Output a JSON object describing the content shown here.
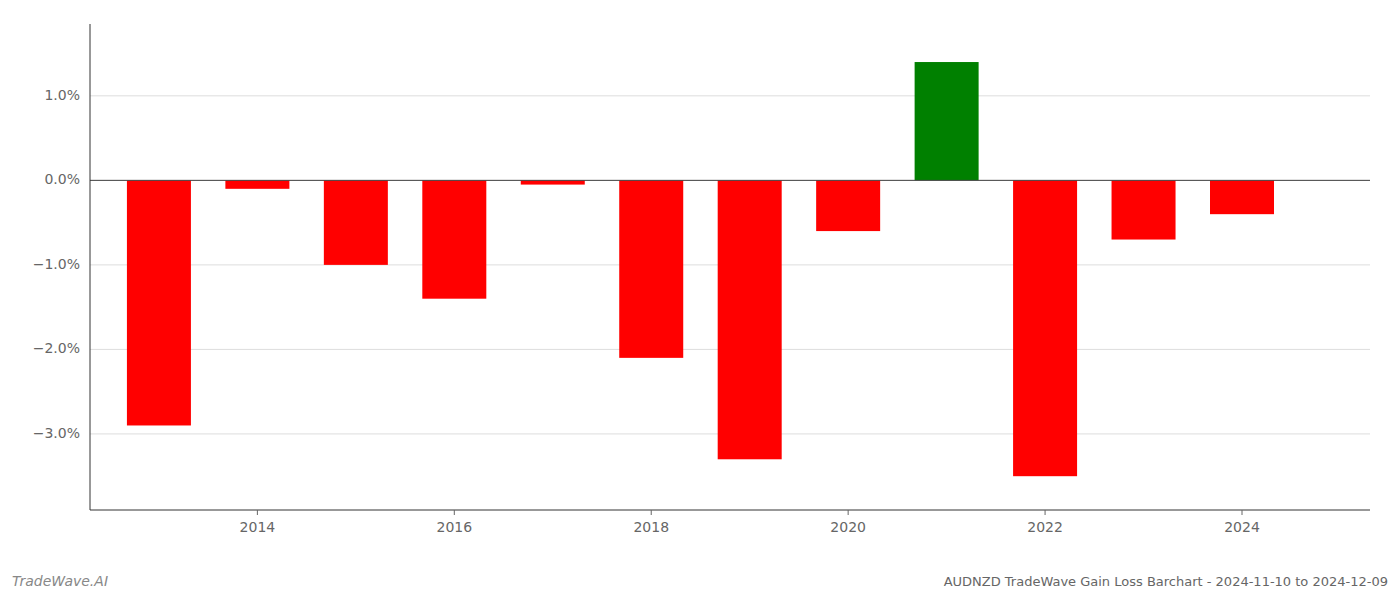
{
  "chart_data": {
    "type": "bar",
    "title": "AUDNZD TradeWave Gain Loss Barchart - 2024-11-10 to 2024-12-09",
    "annotations": [
      "TradeWave.AI"
    ],
    "x": [
      2013,
      2014,
      2015,
      2016,
      2017,
      2018,
      2019,
      2020,
      2021,
      2022,
      2023,
      2024
    ],
    "values": [
      -2.9,
      -0.1,
      -1.0,
      -1.4,
      -0.05,
      -2.1,
      -3.3,
      -0.6,
      1.4,
      -3.5,
      -0.7,
      -0.4
    ],
    "colors": [
      "#ff0000",
      "#ff0000",
      "#ff0000",
      "#ff0000",
      "#ff0000",
      "#ff0000",
      "#ff0000",
      "#ff0000",
      "#008000",
      "#ff0000",
      "#ff0000",
      "#ff0000"
    ],
    "xlim": [
      2012.3,
      2025.3
    ],
    "xticks": [
      2014,
      2016,
      2018,
      2020,
      2022,
      2024
    ],
    "ylim": [
      -3.9,
      1.85
    ],
    "yticks": [
      {
        "value": -3.0,
        "label": "−3.0%"
      },
      {
        "value": -2.0,
        "label": "−2.0%"
      },
      {
        "value": -1.0,
        "label": "−1.0%"
      },
      {
        "value": 0.0,
        "label": "0.0%"
      },
      {
        "value": 1.0,
        "label": "1.0%"
      }
    ],
    "grid": true
  }
}
